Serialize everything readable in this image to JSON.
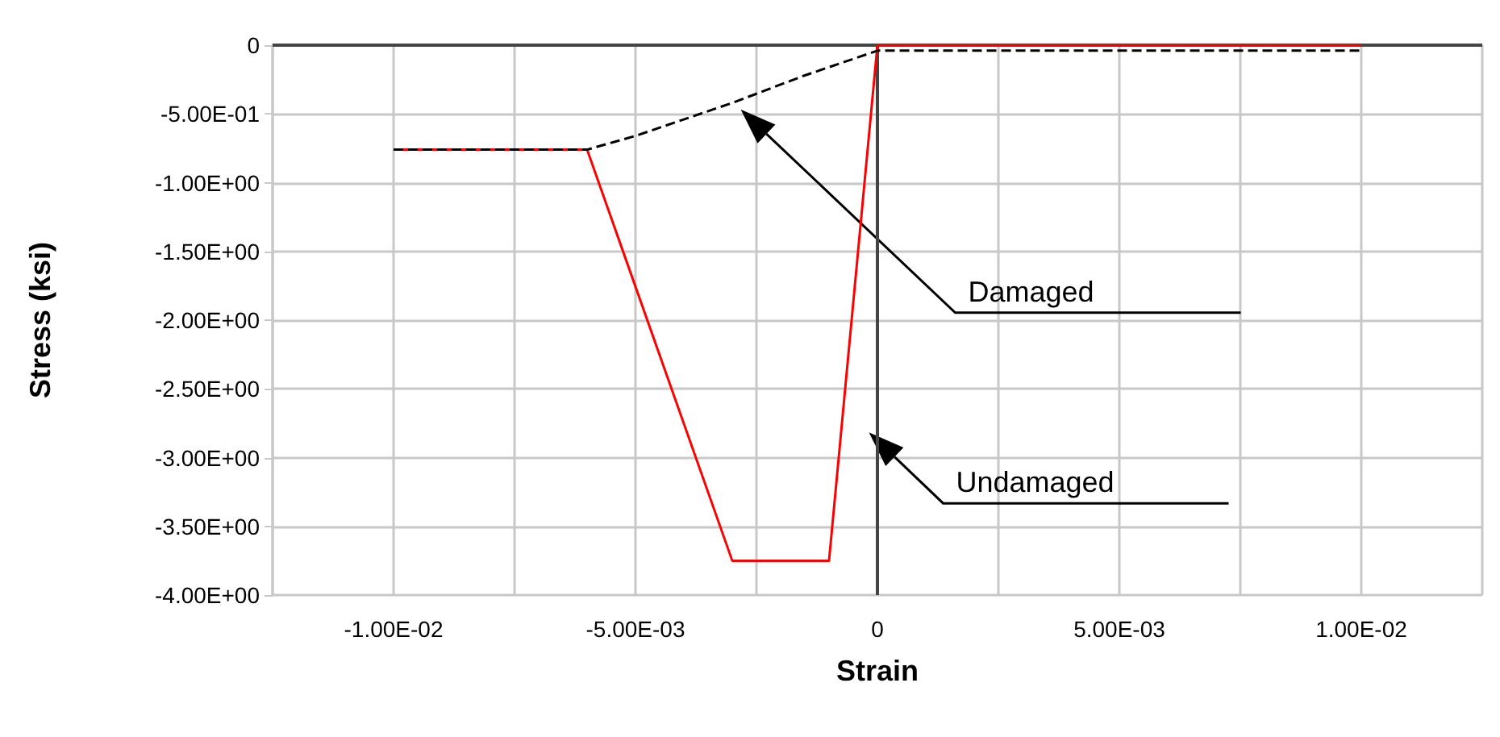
{
  "chart_data": {
    "type": "line",
    "xlabel": "Strain",
    "ylabel": "Stress (ksi)",
    "xlim": [
      -0.0125,
      0.0125
    ],
    "ylim": [
      -4,
      0
    ],
    "xticks": [
      {
        "value": -0.0125,
        "label": null
      },
      {
        "value": -0.01,
        "label": "-1.00E-02"
      },
      {
        "value": -0.0075,
        "label": null
      },
      {
        "value": -0.005,
        "label": "-5.00E-03"
      },
      {
        "value": -0.0025,
        "label": null
      },
      0,
      {
        "value": 0.0025,
        "label": null
      },
      {
        "value": 0.005,
        "label": "5.00E-03"
      },
      {
        "value": 0.0075,
        "label": null
      },
      {
        "value": 0.01,
        "label": "1.00E-02"
      },
      {
        "value": 0.0125,
        "label": null
      }
    ],
    "yticks": [
      {
        "value": -4,
        "label": "-4.00E+00"
      },
      {
        "value": -3.5,
        "label": "-3.50E+00"
      },
      {
        "value": -3,
        "label": "-3.00E+00"
      },
      {
        "value": -2.5,
        "label": "-2.50E+00"
      },
      {
        "value": -2,
        "label": "-2.00E+00"
      },
      {
        "value": -1.5,
        "label": "-1.50E+00"
      },
      {
        "value": -1,
        "label": "-1.00E+00"
      },
      {
        "value": -0.5,
        "label": "-5.00E-01"
      },
      0
    ],
    "grid": true,
    "marker": "none",
    "series": [
      {
        "color": "#ff0000",
        "line_style": "solid",
        "x": [
          -0.01,
          -0.006,
          -0.003,
          -0.001,
          0,
          0.01
        ],
        "values": [
          -0.76,
          -0.76,
          -3.75,
          -3.75,
          0,
          0
        ]
      },
      {
        "color": "#000000",
        "line_style": "dashed",
        "x": [
          -0.01,
          -0.006,
          -0.005,
          -0.003,
          -0.0015,
          0,
          0.01
        ],
        "values": [
          -0.76,
          -0.76,
          -0.66,
          -0.42,
          -0.22,
          -0.04,
          -0.04
        ]
      }
    ],
    "annotations": [
      "Damaged",
      "Undamaged"
    ]
  }
}
